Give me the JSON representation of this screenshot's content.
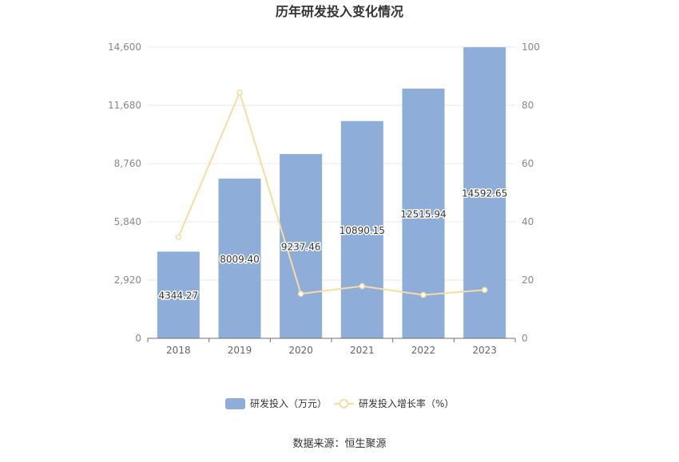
{
  "chart_data": {
    "type": "bar",
    "title": "历年研发投入变化情况",
    "source": "数据来源：恒生聚源",
    "categories": [
      "2018",
      "2019",
      "2020",
      "2021",
      "2022",
      "2023"
    ],
    "series": [
      {
        "name": "研发投入（万元）",
        "type": "bar",
        "axis": "left",
        "color": "#8eadd9",
        "values": [
          4344.27,
          8009.4,
          9237.46,
          10890.15,
          12515.94,
          14592.65
        ],
        "labels": [
          "4344.27",
          "8009.40",
          "9237.46",
          "10890.15",
          "12515.94",
          "14592.65"
        ]
      },
      {
        "name": "研发投入增长率（%）",
        "type": "line",
        "axis": "right",
        "color": "#f9dca2",
        "values": [
          34.7,
          84.4,
          15.3,
          17.9,
          14.9,
          16.6
        ]
      }
    ],
    "y_left": {
      "min": 0,
      "max": 14600,
      "ticks": [
        0,
        2920,
        5840,
        8760,
        11680,
        14600
      ],
      "tick_labels": [
        "0",
        "2,920",
        "5,840",
        "8,760",
        "11,680",
        "14,600"
      ]
    },
    "y_right": {
      "min": 0,
      "max": 100,
      "ticks": [
        0,
        20,
        40,
        60,
        80,
        100
      ],
      "tick_labels": [
        "0",
        "20",
        "40",
        "60",
        "80",
        "100"
      ]
    },
    "grid": true,
    "legend_position": "bottom"
  }
}
